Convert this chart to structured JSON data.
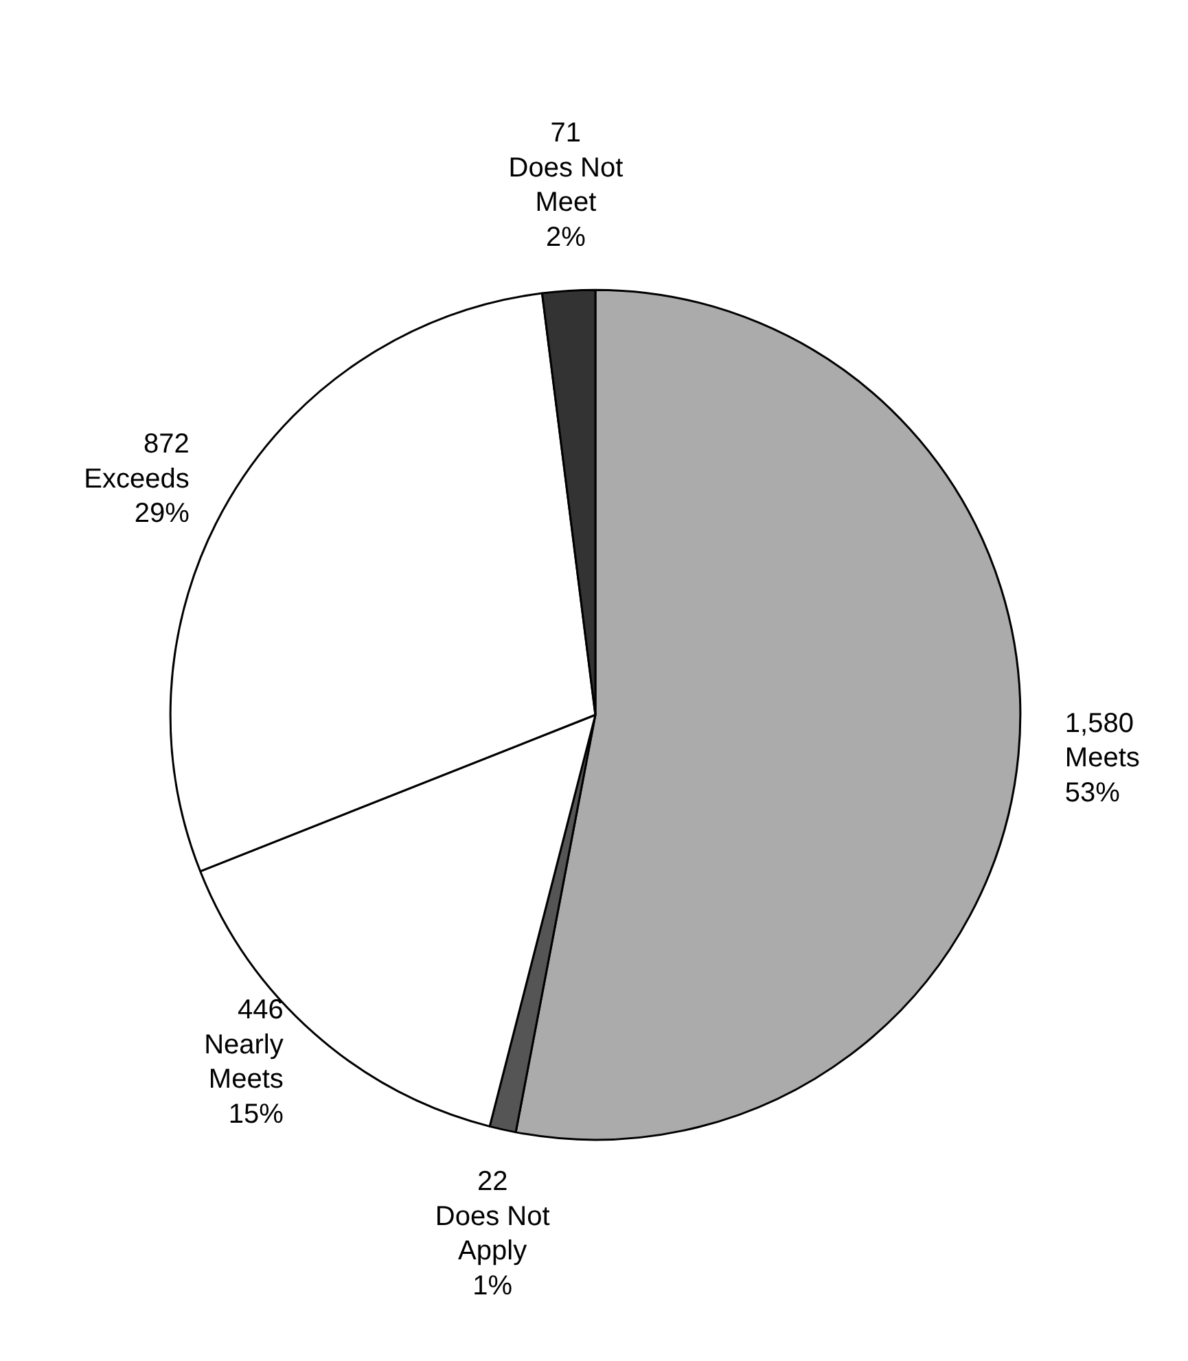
{
  "chart_data": {
    "type": "pie",
    "categories": [
      "Meets",
      "Does Not Apply",
      "Nearly Meets",
      "Exceeds",
      "Does Not Meet"
    ],
    "values": [
      53,
      1,
      15,
      29,
      2
    ],
    "colors": [
      "#ababab",
      "#555555",
      "#ffffff",
      "#ffffff",
      "#333333"
    ],
    "value_labels": [
      "1,580\n53%",
      "22\n1%",
      "446\n15%",
      "872\n29%",
      "71\n2%"
    ]
  }
}
